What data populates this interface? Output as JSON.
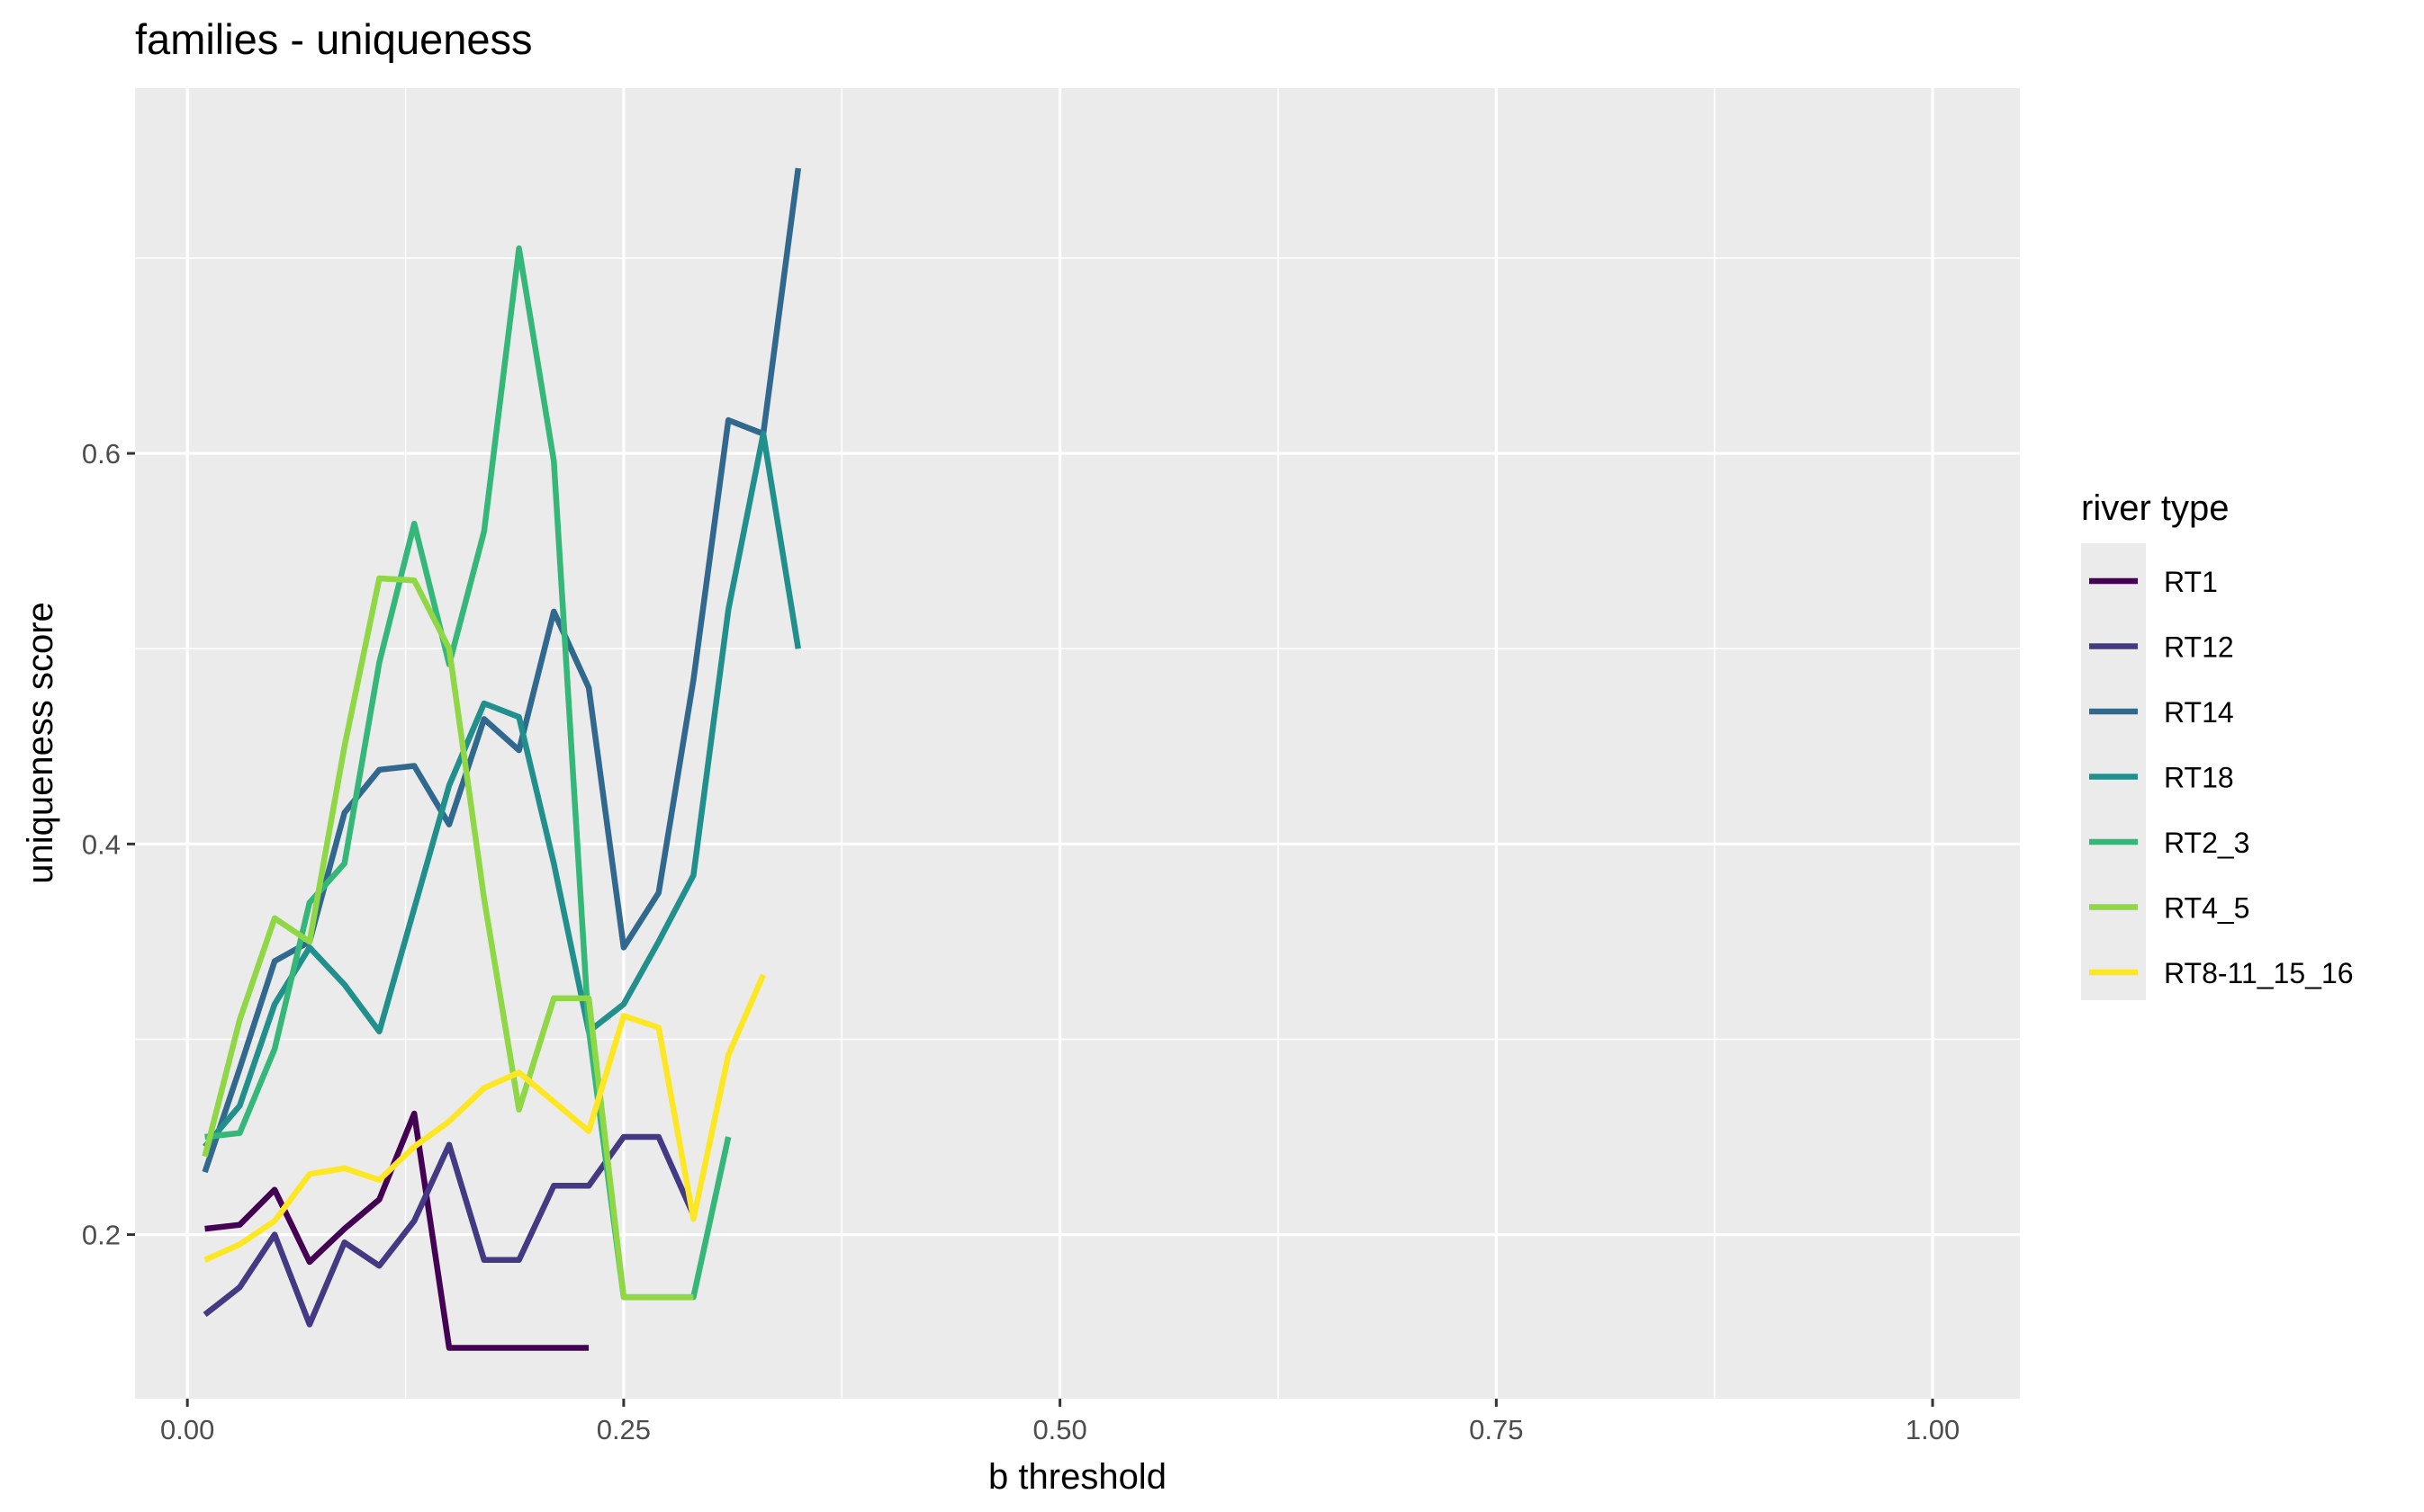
{
  "chart_data": {
    "type": "line",
    "title": "families - uniqueness",
    "xlabel": "b threshold",
    "ylabel": "uniqueness score",
    "xlim": [
      -0.03,
      1.05
    ],
    "ylim": [
      0.116,
      0.787
    ],
    "x_ticks": [
      0.0,
      0.25,
      0.5,
      0.75,
      1.0
    ],
    "x_tick_labels": [
      "0.00",
      "0.25",
      "0.50",
      "0.75",
      "1.00"
    ],
    "y_ticks": [
      0.2,
      0.4,
      0.6
    ],
    "y_tick_labels": [
      "0.2",
      "0.4",
      "0.6"
    ],
    "grid": true,
    "legend_title": "river type",
    "legend_position": "right",
    "series": [
      {
        "name": "RT1",
        "color": "#440154",
        "x": [
          0.01,
          0.03,
          0.05,
          0.07,
          0.09,
          0.11,
          0.13,
          0.15,
          0.17,
          0.19,
          0.21,
          0.23
        ],
        "y": [
          0.203,
          0.205,
          0.223,
          0.186,
          0.203,
          0.218,
          0.262,
          0.142,
          0.142,
          0.142,
          0.142,
          0.142
        ]
      },
      {
        "name": "RT12",
        "color": "#443A83",
        "x": [
          0.01,
          0.03,
          0.05,
          0.07,
          0.09,
          0.11,
          0.13,
          0.15,
          0.17,
          0.19,
          0.21,
          0.23,
          0.25,
          0.27,
          0.29
        ],
        "y": [
          0.159,
          0.173,
          0.2,
          0.154,
          0.196,
          0.184,
          0.207,
          0.246,
          0.187,
          0.187,
          0.225,
          0.225,
          0.25,
          0.25,
          0.21
        ]
      },
      {
        "name": "RT14",
        "color": "#31688E",
        "x": [
          0.01,
          0.03,
          0.05,
          0.07,
          0.09,
          0.11,
          0.13,
          0.15,
          0.17,
          0.19,
          0.21,
          0.23,
          0.25,
          0.27,
          0.29,
          0.31,
          0.33,
          0.35
        ],
        "y": [
          0.232,
          0.285,
          0.34,
          0.35,
          0.416,
          0.438,
          0.44,
          0.41,
          0.464,
          0.448,
          0.519,
          0.48,
          0.347,
          0.375,
          0.484,
          0.617,
          0.61,
          0.746
        ]
      },
      {
        "name": "RT18",
        "color": "#21908C",
        "x": [
          0.01,
          0.03,
          0.05,
          0.07,
          0.09,
          0.11,
          0.13,
          0.15,
          0.17,
          0.19,
          0.21,
          0.23,
          0.25,
          0.27,
          0.29,
          0.31,
          0.33,
          0.35
        ],
        "y": [
          0.245,
          0.266,
          0.318,
          0.347,
          0.328,
          0.304,
          0.367,
          0.43,
          0.472,
          0.465,
          0.39,
          0.304,
          0.318,
          0.35,
          0.384,
          0.52,
          0.61,
          0.5
        ]
      },
      {
        "name": "RT2_3",
        "color": "#35B779",
        "x": [
          0.01,
          0.03,
          0.05,
          0.07,
          0.09,
          0.11,
          0.13,
          0.15,
          0.17,
          0.19,
          0.21,
          0.23,
          0.25,
          0.27,
          0.29,
          0.31
        ],
        "y": [
          0.25,
          0.252,
          0.295,
          0.37,
          0.39,
          0.493,
          0.564,
          0.492,
          0.56,
          0.705,
          0.596,
          0.305,
          0.168,
          0.168,
          0.168,
          0.25
        ]
      },
      {
        "name": "RT4_5",
        "color": "#8FD744",
        "x": [
          0.01,
          0.03,
          0.05,
          0.07,
          0.09,
          0.11,
          0.13,
          0.15,
          0.17,
          0.19,
          0.21,
          0.23,
          0.25,
          0.27,
          0.29
        ],
        "y": [
          0.24,
          0.31,
          0.362,
          0.35,
          0.45,
          0.536,
          0.535,
          0.5,
          0.372,
          0.264,
          0.321,
          0.321,
          0.168,
          0.168,
          0.168
        ]
      },
      {
        "name": "RT8-11_15_16",
        "color": "#FDE725",
        "x": [
          0.01,
          0.03,
          0.05,
          0.07,
          0.09,
          0.11,
          0.13,
          0.15,
          0.17,
          0.19,
          0.21,
          0.23,
          0.25,
          0.27,
          0.29,
          0.31,
          0.33
        ],
        "y": [
          0.187,
          0.195,
          0.207,
          0.231,
          0.234,
          0.228,
          0.245,
          0.258,
          0.275,
          0.283,
          0.268,
          0.253,
          0.312,
          0.306,
          0.208,
          0.292,
          0.333
        ]
      }
    ]
  }
}
